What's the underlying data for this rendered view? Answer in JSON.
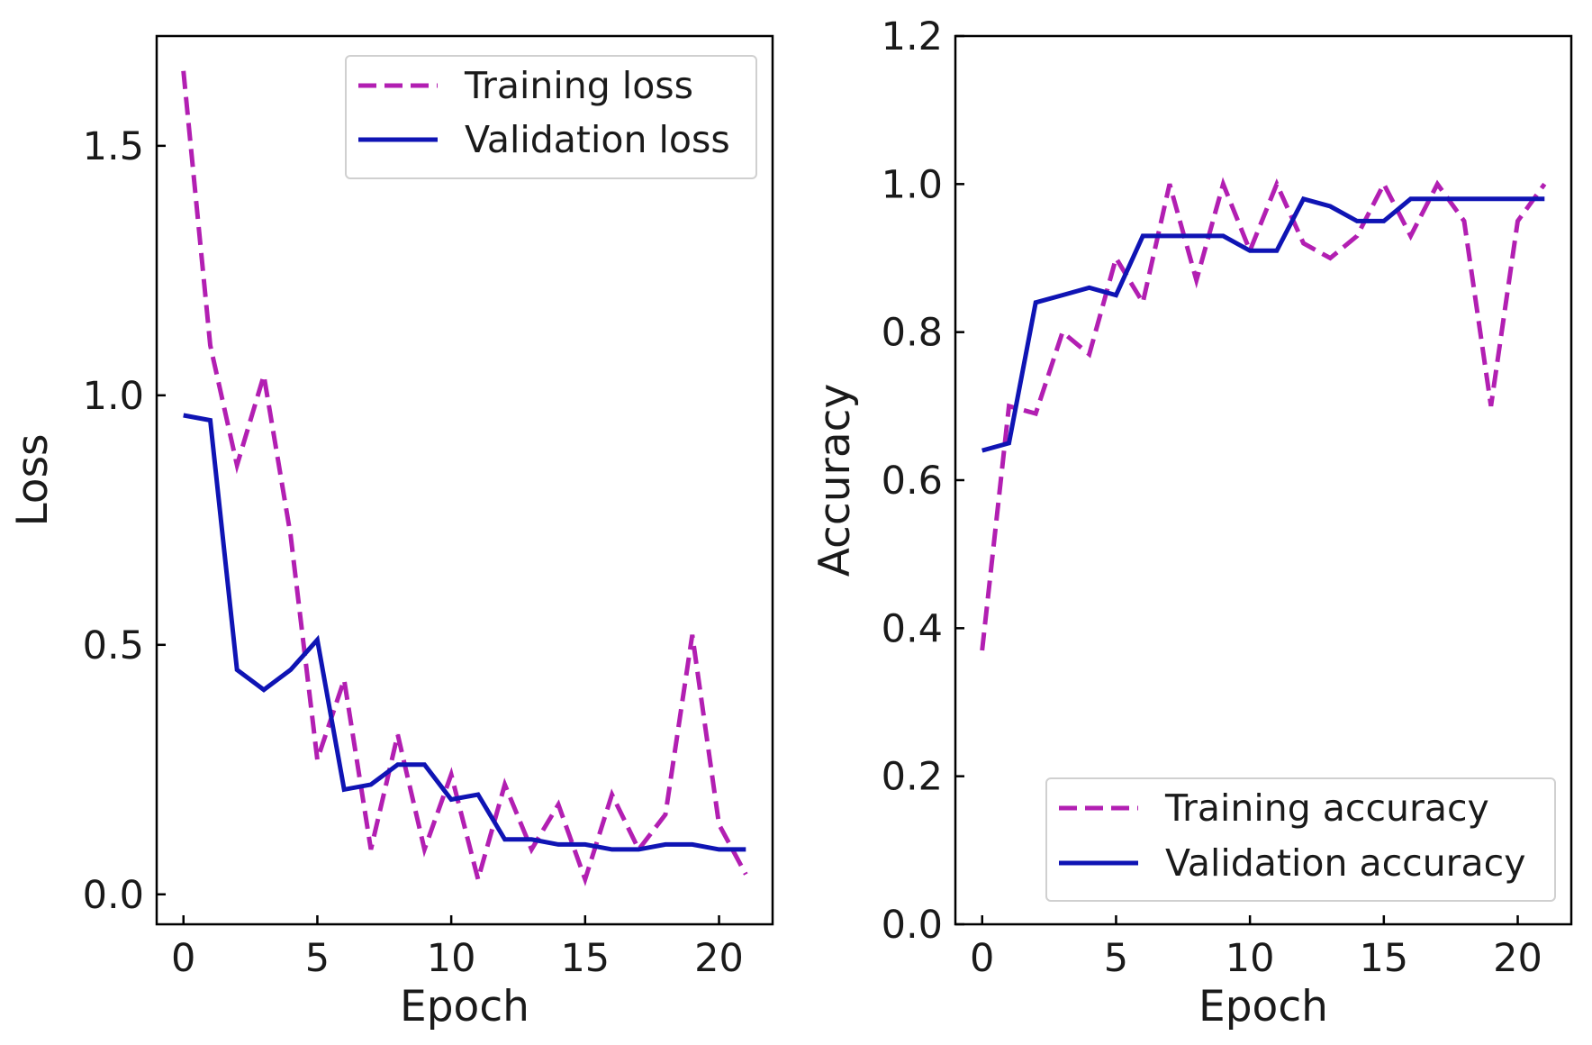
{
  "chart_data": [
    {
      "type": "line",
      "id": "loss",
      "xlabel": "Epoch",
      "ylabel": "Loss",
      "xlim": [
        -1,
        22
      ],
      "ylim": [
        -0.06,
        1.72
      ],
      "xticks": [
        0,
        5,
        10,
        15,
        20
      ],
      "xtick_labels": [
        "0",
        "5",
        "10",
        "15",
        "20"
      ],
      "yticks": [
        0.0,
        0.5,
        1.0,
        1.5
      ],
      "ytick_labels": [
        "0.0",
        "0.5",
        "1.0",
        "1.5"
      ],
      "legend_position": "top-right",
      "x": [
        0,
        1,
        2,
        3,
        4,
        5,
        6,
        7,
        8,
        9,
        10,
        11,
        12,
        13,
        14,
        15,
        16,
        17,
        18,
        19,
        20,
        21
      ],
      "series": [
        {
          "name": "Training loss",
          "style": "dashed",
          "color": "#b21fb2",
          "values": [
            1.65,
            1.1,
            0.86,
            1.04,
            0.72,
            0.27,
            0.43,
            0.09,
            0.32,
            0.09,
            0.24,
            0.03,
            0.22,
            0.09,
            0.18,
            0.03,
            0.2,
            0.09,
            0.16,
            0.52,
            0.14,
            0.04
          ]
        },
        {
          "name": "Validation loss",
          "style": "solid",
          "color": "#0f14b4",
          "values": [
            0.96,
            0.95,
            0.45,
            0.41,
            0.45,
            0.51,
            0.21,
            0.22,
            0.26,
            0.26,
            0.19,
            0.2,
            0.11,
            0.11,
            0.1,
            0.1,
            0.09,
            0.09,
            0.1,
            0.1,
            0.09,
            0.09
          ]
        }
      ]
    },
    {
      "type": "line",
      "id": "accuracy",
      "xlabel": "Epoch",
      "ylabel": "Accuracy",
      "xlim": [
        -1,
        22
      ],
      "ylim": [
        0.0,
        1.2
      ],
      "xticks": [
        0,
        5,
        10,
        15,
        20
      ],
      "xtick_labels": [
        "0",
        "5",
        "10",
        "15",
        "20"
      ],
      "yticks": [
        0.0,
        0.2,
        0.4,
        0.6,
        0.8,
        1.0,
        1.2
      ],
      "ytick_labels": [
        "0.0",
        "0.2",
        "0.4",
        "0.6",
        "0.8",
        "1.0",
        "1.2"
      ],
      "legend_position": "bottom-right",
      "x": [
        0,
        1,
        2,
        3,
        4,
        5,
        6,
        7,
        8,
        9,
        10,
        11,
        12,
        13,
        14,
        15,
        16,
        17,
        18,
        19,
        20,
        21
      ],
      "series": [
        {
          "name": "Training accuracy",
          "style": "dashed",
          "color": "#b21fb2",
          "values": [
            0.37,
            0.7,
            0.69,
            0.8,
            0.77,
            0.9,
            0.84,
            1.0,
            0.87,
            1.0,
            0.91,
            1.0,
            0.92,
            0.9,
            0.93,
            1.0,
            0.93,
            1.0,
            0.95,
            0.7,
            0.95,
            1.0
          ]
        },
        {
          "name": "Validation accuracy",
          "style": "solid",
          "color": "#0f14b4",
          "values": [
            0.64,
            0.65,
            0.84,
            0.85,
            0.86,
            0.85,
            0.93,
            0.93,
            0.93,
            0.93,
            0.91,
            0.91,
            0.98,
            0.97,
            0.95,
            0.95,
            0.98,
            0.98,
            0.98,
            0.98,
            0.98,
            0.98
          ]
        }
      ]
    }
  ]
}
